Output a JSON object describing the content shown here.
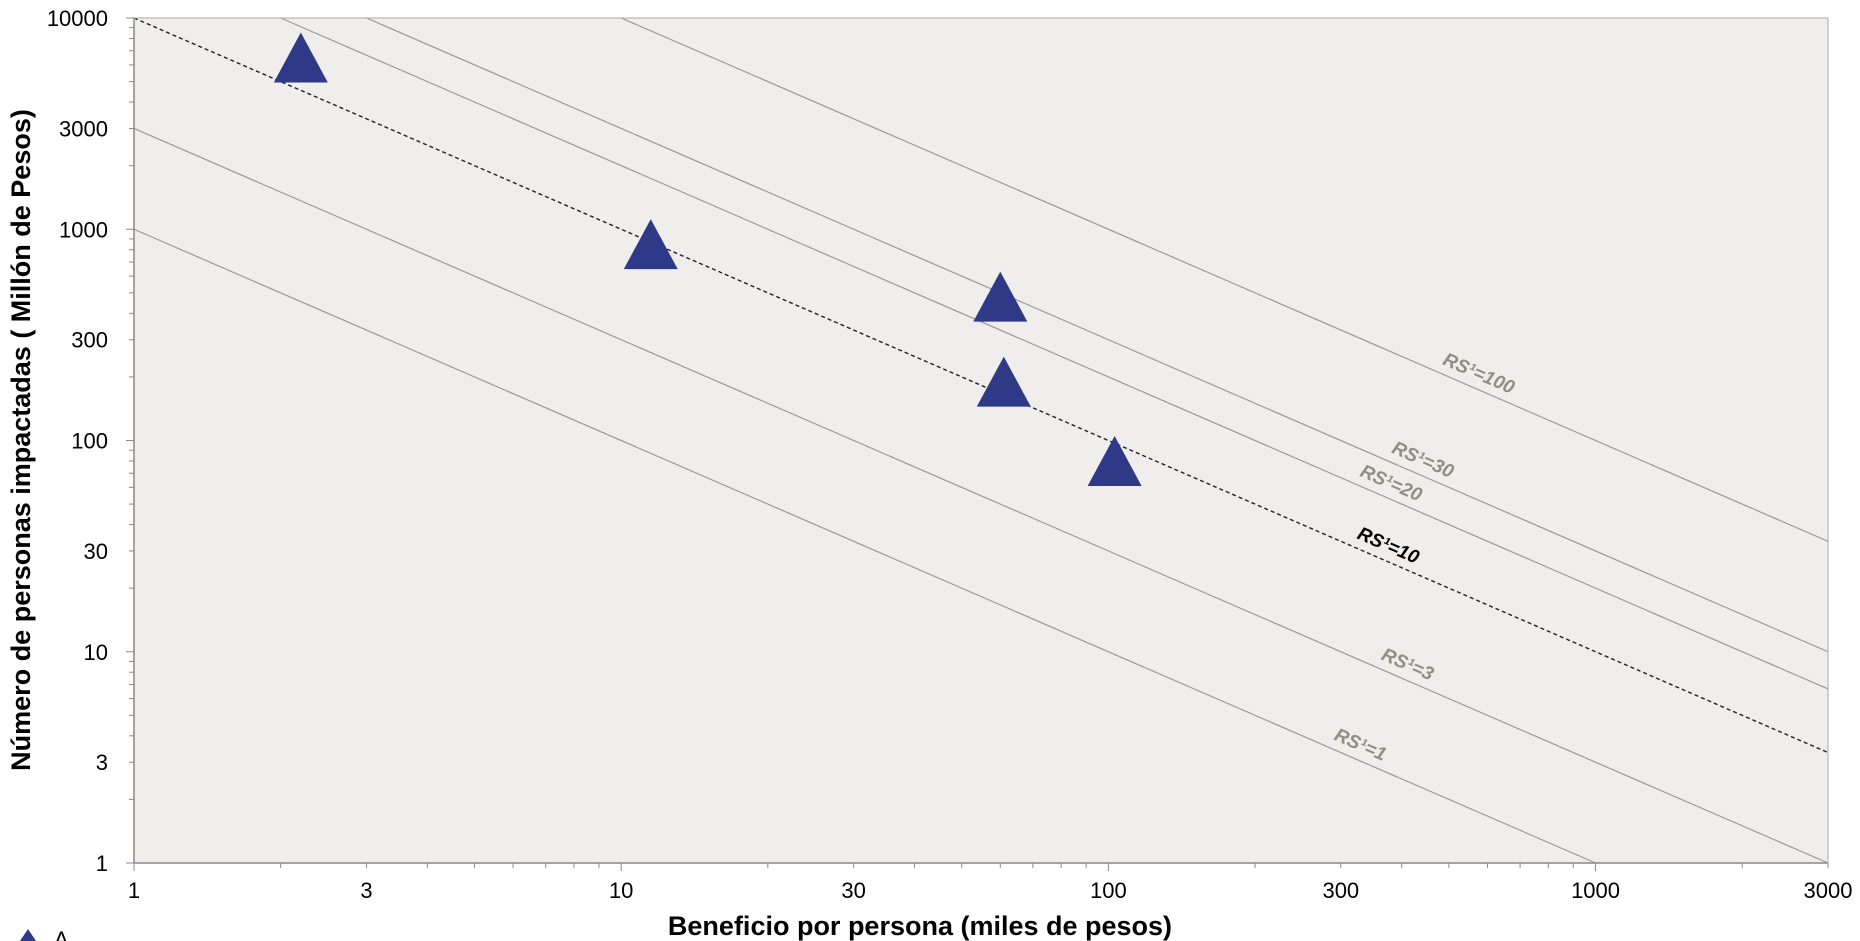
{
  "chart_data": {
    "type": "scatter",
    "title": "",
    "xlabel": "Beneficio por persona (miles de pesos)",
    "ylabel": "Número de personas impactadas ( Millón de Pesos)",
    "x_scale": "log",
    "y_scale": "log",
    "xlim": [
      1,
      3000
    ],
    "ylim": [
      1,
      10000
    ],
    "x_ticks": [
      "1",
      "3",
      "10",
      "30",
      "100",
      "300",
      "1000",
      "3000"
    ],
    "y_ticks": [
      "10000",
      "3000",
      "1000",
      "300",
      "100",
      "30",
      "10",
      "3",
      "1"
    ],
    "grid": false,
    "series": [
      {
        "marker": "triangle",
        "color": "#2e3a87",
        "points": [
          {
            "x": 2.2,
            "y": 6500
          },
          {
            "x": 11.5,
            "y": 850
          },
          {
            "x": 60,
            "y": 480
          },
          {
            "x": 61,
            "y": 190
          },
          {
            "x": 103,
            "y": 80
          }
        ]
      }
    ],
    "reference_lines": [
      {
        "rs": 1,
        "label": "RS¹=1",
        "style": "solid",
        "color": "#9a9a9a",
        "label_color": "#8f8f84",
        "label_x": 320
      },
      {
        "rs": 3,
        "label": "RS¹=3",
        "style": "solid",
        "color": "#9a9a9a",
        "label_color": "#8f8f84",
        "label_x": 400
      },
      {
        "rs": 10,
        "label": "RS¹=10",
        "style": "dashed",
        "color": "#222222",
        "label_color": "#000000",
        "label_x": 365
      },
      {
        "rs": 20,
        "label": "RS¹=20",
        "style": "solid",
        "color": "#9a9a9a",
        "label_color": "#8f8f84",
        "label_x": 370
      },
      {
        "rs": 30,
        "label": "RS¹=30",
        "style": "solid",
        "color": "#9a9a9a",
        "label_color": "#8f8f84",
        "label_x": 430
      },
      {
        "rs": 100,
        "label": "RS¹=100",
        "style": "solid",
        "color": "#9a9a9a",
        "label_color": "#8f8f84",
        "label_x": 560
      }
    ],
    "legend": {
      "position": "bottom-left",
      "marker_color": "#2e3a87",
      "text": "A"
    },
    "colors": {
      "plot_bg": "#efeeed",
      "axis": "#888888",
      "marker": "#2e3a87"
    }
  }
}
